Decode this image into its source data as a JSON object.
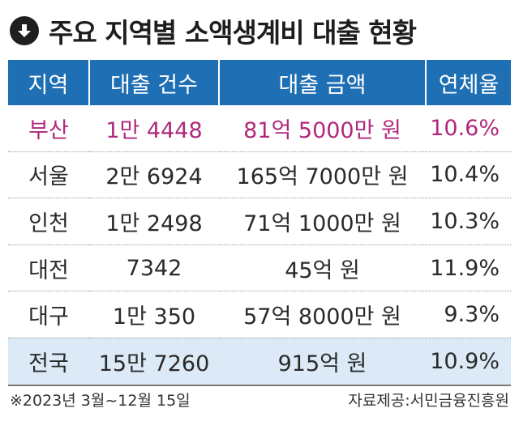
{
  "title": "주요 지역별 소액생계비 대출 현황",
  "title_icon": "down-arrow-circle-icon",
  "colors": {
    "header": "#1f6fb5",
    "highlight_text": "#b0287c",
    "total_row": "#dbeaf6"
  },
  "table": {
    "headers": [
      "지역",
      "대출 건수",
      "대출 금액",
      "연체율"
    ],
    "rows": [
      {
        "region": "부산",
        "count": "1만 4448",
        "amount": "81억 5000만 원",
        "rate": "10.6%"
      },
      {
        "region": "서울",
        "count": "2만 6924",
        "amount": "165억 7000만 원",
        "rate": "10.4%"
      },
      {
        "region": "인천",
        "count": "1만 2498",
        "amount": "71억 1000만 원",
        "rate": "10.3%"
      },
      {
        "region": "대전",
        "count": "7342",
        "amount": "45억 원",
        "rate": "11.9%"
      },
      {
        "region": "대구",
        "count": "1만 350",
        "amount": "57억 8000만 원",
        "rate": "9.3%"
      },
      {
        "region": "전국",
        "count": "15만 7260",
        "amount": "915억 원",
        "rate": "10.9%"
      }
    ]
  },
  "footer": {
    "period": "※2023년 3월~12월 15일",
    "source": "자료제공:서민금융진흥원"
  }
}
